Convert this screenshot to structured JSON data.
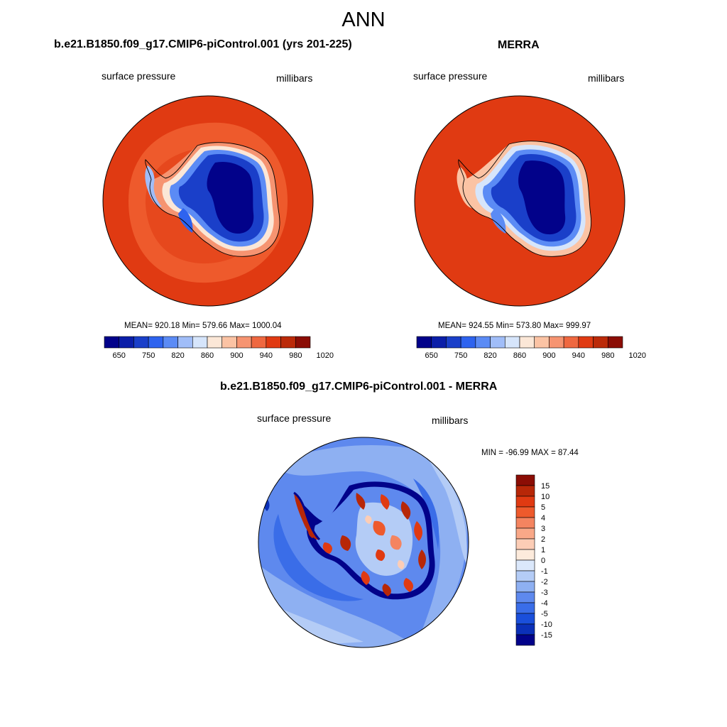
{
  "figure_title": "ANN",
  "panels": [
    {
      "title": "b.e21.B1850.f09_g17.CMIP6-piControl.001 (yrs 201-225)",
      "left_label": "surface pressure",
      "right_label": "millibars",
      "stats": "MEAN= 920.18  Min= 579.66  Max= 1000.04"
    },
    {
      "title": "MERRA",
      "left_label": "surface pressure",
      "right_label": "millibars",
      "stats": "MEAN= 924.55  Min= 573.80  Max= 999.97"
    },
    {
      "title": "b.e21.B1850.f09_g17.CMIP6-piControl.001 - MERRA",
      "left_label": "surface pressure",
      "right_label": "millibars",
      "stats": "MIN = -96.99 MAX =  87.44"
    }
  ],
  "colorbar_abs": {
    "colors": [
      "#02028a",
      "#0b1ea8",
      "#1a3fc9",
      "#2e63ef",
      "#5b8bf5",
      "#a0bdf8",
      "#d6e5fb",
      "#fbe7d7",
      "#fbc3a4",
      "#f69471",
      "#ef6840",
      "#e03a12",
      "#bb2a09",
      "#8b0d05"
    ],
    "tick_labels": [
      "650",
      "750",
      "820",
      "860",
      "900",
      "940",
      "980",
      "1020"
    ]
  },
  "colorbar_diff": {
    "colors": [
      "#8b0d05",
      "#b72708",
      "#e03a12",
      "#ee5a2c",
      "#f48460",
      "#f9a888",
      "#fccdb6",
      "#fdebdc",
      "#dbe8fb",
      "#b4ccf6",
      "#8eb0f2",
      "#5e89ee",
      "#3a6de8",
      "#1a4fdb",
      "#0b30b8",
      "#02028a"
    ],
    "tick_labels": [
      "15",
      "10",
      "5",
      "4",
      "3",
      "2",
      "1",
      "0",
      "-1",
      "-2",
      "-3",
      "-4",
      "-5",
      "-10",
      "-15"
    ]
  }
}
